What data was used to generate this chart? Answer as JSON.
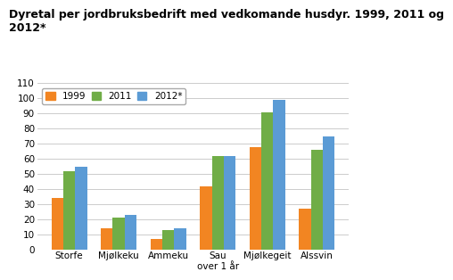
{
  "title": "Dyretal per jordbruksbedrift med vedkomande husdyr. 1999, 2011 og\n2012*",
  "categories": [
    "Storfe",
    "Mjølkeku",
    "Ammeku",
    "Sau\nover 1 år",
    "Mjølkegeit",
    "Alssvin"
  ],
  "series": {
    "1999": [
      34,
      14,
      7,
      42,
      68,
      27
    ],
    "2011": [
      52,
      21,
      13,
      62,
      91,
      66
    ],
    "2012*": [
      55,
      23,
      14,
      62,
      99,
      75
    ]
  },
  "colors": {
    "1999": "#F28522",
    "2011": "#70AD47",
    "2012*": "#5B9BD5"
  },
  "ylim": [
    0,
    110
  ],
  "yticks": [
    0,
    10,
    20,
    30,
    40,
    50,
    60,
    70,
    80,
    90,
    100,
    110
  ],
  "legend_labels": [
    "1999",
    "2011",
    "2012*"
  ],
  "background_color": "#ffffff",
  "grid_color": "#cccccc",
  "title_fontsize": 9.0,
  "tick_fontsize": 7.5,
  "legend_fontsize": 7.5
}
